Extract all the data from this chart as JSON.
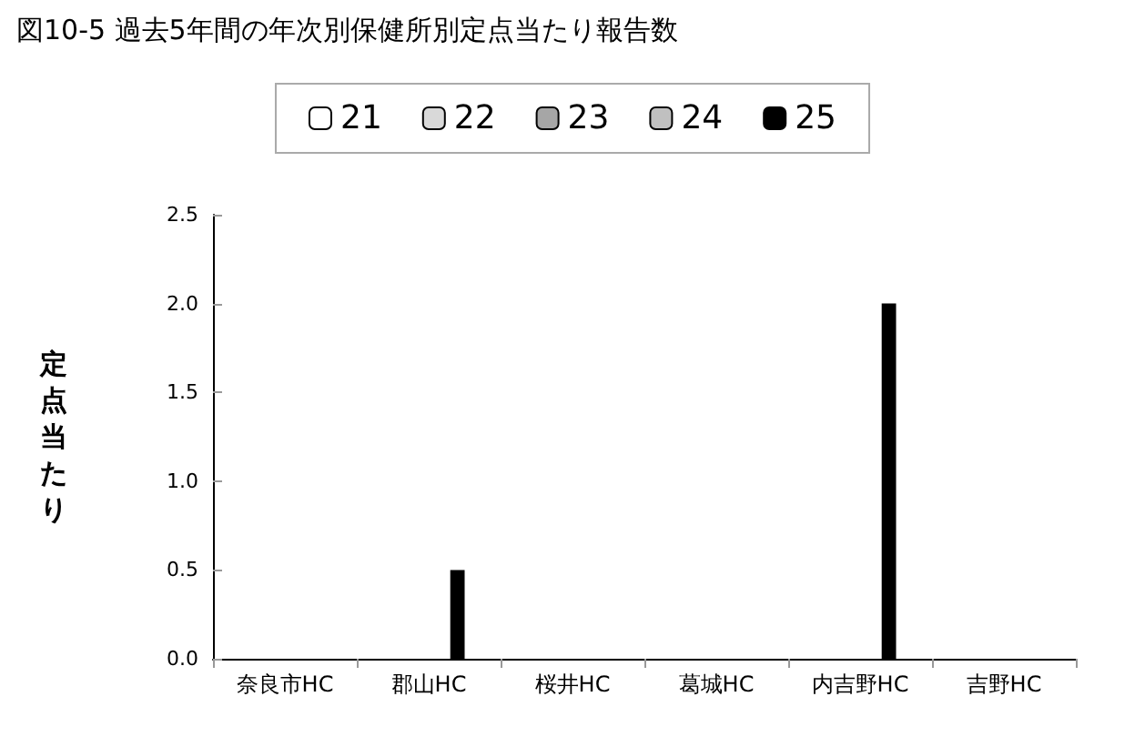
{
  "chart_data": {
    "type": "bar",
    "title": "図10-5 過去5年間の年次別保健所別定点当たり報告数",
    "ylabel": "定点当たり",
    "categories": [
      "奈良市HC",
      "郡山HC",
      "桜井HC",
      "葛城HC",
      "内吉野HC",
      "吉野HC"
    ],
    "series": [
      {
        "name": "21",
        "color": "#ffffff",
        "values": [
          0,
          0,
          0,
          0,
          0,
          0
        ]
      },
      {
        "name": "22",
        "color": "#d9d9d9",
        "values": [
          0,
          0,
          0,
          0,
          0,
          0
        ]
      },
      {
        "name": "23",
        "color": "#a6a6a6",
        "values": [
          0,
          0,
          0,
          0,
          0,
          0
        ]
      },
      {
        "name": "24",
        "color": "#c0c0c0",
        "values": [
          0,
          0,
          0,
          0,
          0,
          0
        ]
      },
      {
        "name": "25",
        "color": "#000000",
        "values": [
          0,
          0.5,
          0,
          0,
          2.0,
          0
        ]
      }
    ],
    "ylim": [
      0,
      2.5
    ],
    "yticks": [
      {
        "value": 0,
        "label": "0.0"
      },
      {
        "value": 0.5,
        "label": "0.5"
      },
      {
        "value": 1,
        "label": "1.0"
      },
      {
        "value": 1.5,
        "label": "1.5"
      },
      {
        "value": 2,
        "label": "2.0"
      },
      {
        "value": 2.5,
        "label": "2.5"
      }
    ],
    "grid": false,
    "legend": "top"
  }
}
